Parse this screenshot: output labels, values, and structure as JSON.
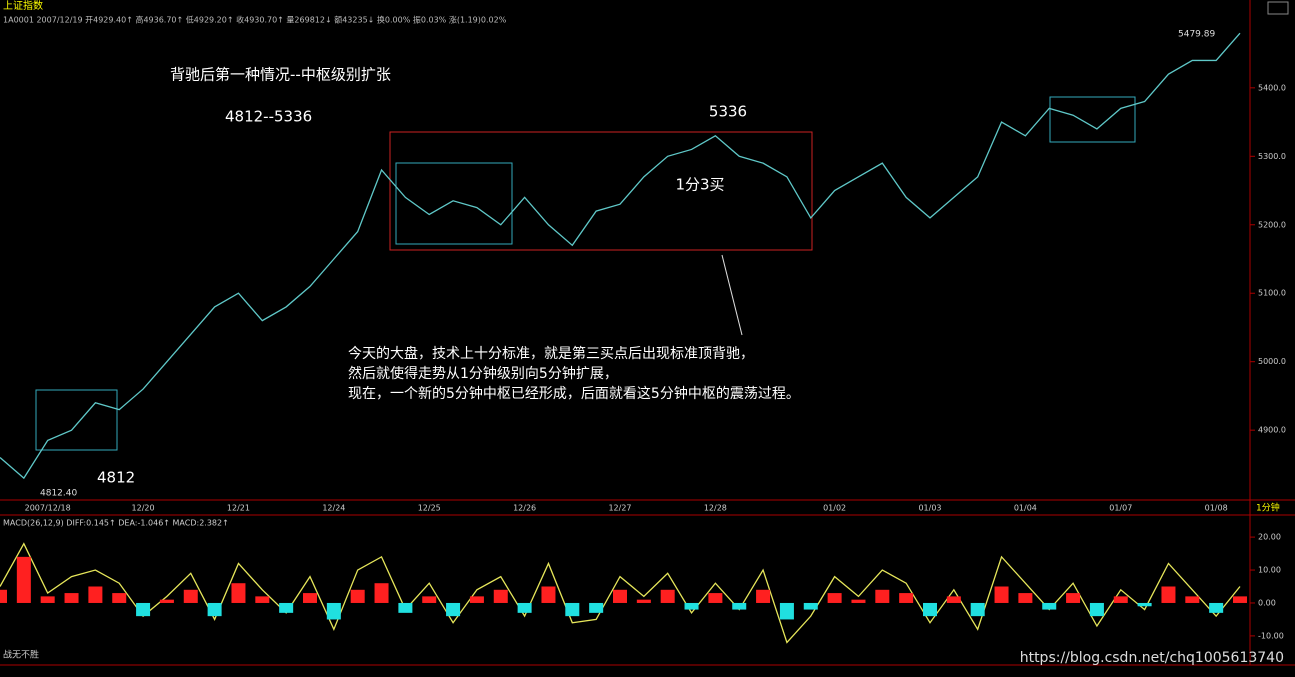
{
  "header": {
    "index_name": "上证指数",
    "info": "1A0001 2007/12/19 开4929.40↑ 高4936.70↑ 低4929.20↑ 收4930.70↑ 量269812↓ 额43235↓ 换0.00% 振0.03% 涨(1.19)0.02%",
    "period": "1分钟"
  },
  "footer": {
    "left": "战无不胜",
    "watermark": "https://blog.csdn.net/chq1005613740"
  },
  "chart_data": [
    {
      "type": "line",
      "title": "背驰后第一种情况--中枢级别扩张",
      "color": "#5fc8c8",
      "annotations": [
        "4812--5336",
        "5336",
        "1分3买",
        "4812",
        "4812.40",
        "5479.89",
        "今天的大盘，技术上十分标准，就是第三买点后出现标准顶背驰，",
        "然后就使得走势从1分钟级别向5分钟扩展，",
        "现在，一个新的5分钟中枢已经形成，后面就看这5分钟中枢的震荡过程。"
      ],
      "categories": [
        null,
        null,
        "2007/12/18",
        null,
        null,
        null,
        "12/20",
        null,
        null,
        null,
        "12/21",
        null,
        null,
        null,
        "12/24",
        null,
        null,
        null,
        "12/25",
        null,
        null,
        null,
        "12/26",
        null,
        null,
        null,
        "12/27",
        null,
        null,
        null,
        "12/28",
        null,
        null,
        null,
        null,
        "01/02",
        null,
        null,
        null,
        "01/03",
        null,
        null,
        null,
        "01/04",
        null,
        null,
        null,
        "01/07",
        null,
        null,
        null,
        "01/08",
        null
      ],
      "values": [
        4860,
        4830,
        4885,
        4900,
        4940,
        4930,
        4960,
        5000,
        5040,
        5080,
        5100,
        5060,
        5080,
        5110,
        5150,
        5190,
        5280,
        5240,
        5215,
        5235,
        5225,
        5200,
        5240,
        5200,
        5170,
        5220,
        5230,
        5270,
        5300,
        5310,
        5330,
        5300,
        5290,
        5270,
        5210,
        5250,
        5270,
        5290,
        5240,
        5210,
        5240,
        5270,
        5350,
        5330,
        5370,
        5360,
        5340,
        5370,
        5380,
        5420,
        5440,
        5440,
        5479.89
      ],
      "ylim": [
        4798,
        5502
      ],
      "yticks": [
        {
          "value": 4900,
          "label": "4900.0"
        },
        {
          "value": 5000,
          "label": "5000.0"
        },
        {
          "value": 5100,
          "label": "5100.0"
        },
        {
          "value": 5200,
          "label": "5200.0"
        },
        {
          "value": 5300,
          "label": "5300.0"
        },
        {
          "value": 5400,
          "label": "5400.0"
        }
      ]
    },
    {
      "type": "macd",
      "title": "MACD(26,12,9) DIFF:0.145↑ DEA:-1.046↑ MACD:2.382↑",
      "series": [
        {
          "type": "line",
          "color": "#e6e65a",
          "values": [
            5,
            18,
            3,
            8,
            10,
            6,
            -4,
            2,
            9,
            -5,
            12,
            4,
            -3,
            8,
            -8,
            10,
            14,
            -2,
            6,
            -6,
            4,
            8,
            -4,
            12,
            -6,
            -5,
            8,
            2,
            9,
            -3,
            6,
            -2,
            10,
            -12,
            -4,
            8,
            2,
            10,
            6,
            -6,
            4,
            -8,
            14,
            6,
            -2,
            6,
            -7,
            4,
            -2,
            12,
            4,
            -4,
            5
          ]
        },
        {
          "type": "bar",
          "up_color": "#ff2020",
          "down_color": "#20e0e0",
          "values": [
            4,
            14,
            2,
            3,
            5,
            3,
            -4,
            1,
            4,
            -4,
            6,
            2,
            -3,
            3,
            -5,
            4,
            6,
            -3,
            2,
            -4,
            2,
            4,
            -3,
            5,
            -4,
            -3,
            4,
            1,
            4,
            -2,
            3,
            -2,
            4,
            -5,
            -2,
            3,
            1,
            4,
            3,
            -4,
            2,
            -4,
            5,
            3,
            -2,
            3,
            -4,
            2,
            -1,
            5,
            2,
            -3,
            2
          ]
        }
      ],
      "ylim": [
        -15.8,
        25.8
      ],
      "yticks": [
        {
          "value": -10,
          "label": "-10.00"
        },
        {
          "value": 0,
          "label": "0.00"
        },
        {
          "value": 10,
          "label": "10.00"
        },
        {
          "value": 20,
          "label": "20.00"
        }
      ]
    }
  ]
}
